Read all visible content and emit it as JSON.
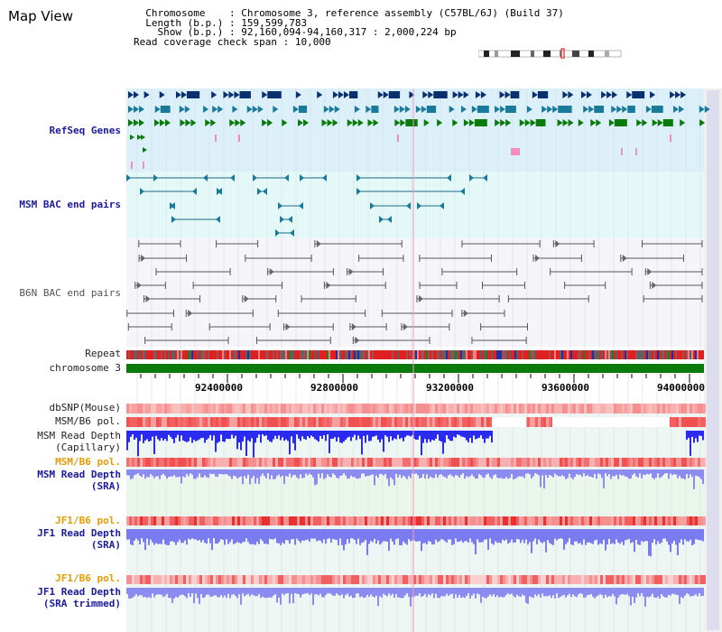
{
  "app": {
    "title": "Map View"
  },
  "info": {
    "chromosome_key": "Chromosome",
    "chromosome_value": "Chromosome 3, reference assembly (C57BL/6J) (Build 37)",
    "length_key": "Length (b.p.)",
    "length_value": "159,599,783",
    "show_key": "Show (b.p.)",
    "show_value": "92,160,094-94,160,317 : 2,000,224 bp",
    "coverage_key": "Read coverage check span",
    "coverage_value": "10,000"
  },
  "tracks": {
    "refseq": "RefSeq Genes",
    "msm_bac": "MSM BAC end pairs",
    "b6n_bac": "B6N BAC end pairs",
    "repeat": "Repeat",
    "chromosome": "chromosome 3",
    "dbsnp": "dbSNP(Mouse)",
    "msm_b6_pol_1": "MSM/B6 pol.",
    "msm_depth_cap_1": "MSM Read Depth",
    "msm_depth_cap_2": "(Capillary)",
    "msm_b6_pol_2": "MSM/B6 pol.",
    "msm_depth_sra_1": "MSM Read Depth",
    "msm_depth_sra_2": "(SRA)",
    "jf1_b6_pol_1": "JF1/B6 pol.",
    "jf1_depth_sra_1": "JF1 Read Depth",
    "jf1_depth_sra_2": "(SRA)",
    "jf1_b6_pol_2": "JF1/B6 pol.",
    "jf1_depth_trim_1": "JF1 Read Depth",
    "jf1_depth_trim_2": "(SRA trimmed)"
  },
  "ruler": {
    "ticks": [
      "92400000",
      "92800000",
      "93200000",
      "93600000",
      "94000000"
    ]
  },
  "colors": {
    "refseq_bg": "#dcf0fa",
    "msm_bg": "#e4f8f8",
    "b6n_bg": "#f6f6fa",
    "chromosome_bar": "#0a7a0a",
    "depth_blue": "#2b2bf0",
    "depth_light": "#8c8cf0",
    "pol_red": "#f04040"
  }
}
